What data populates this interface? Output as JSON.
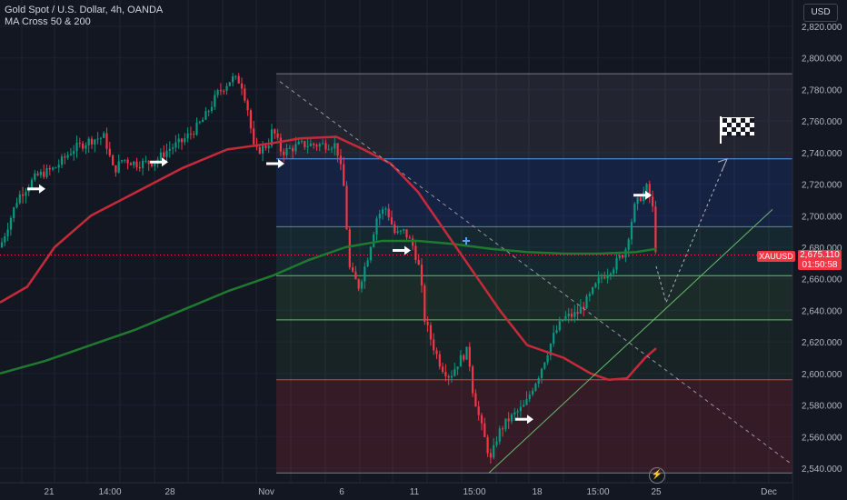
{
  "legend": {
    "symbol_line": "Gold Spot / U.S. Dollar, 4h, OANDA",
    "indicator_line": "MA Cross 50 & 200"
  },
  "currency_button": "USD",
  "price_badge": {
    "symbol": "XAUUSD",
    "price": "2,675.110",
    "countdown": "01:50:58"
  },
  "flash_icon": "lightning-icon",
  "colors": {
    "background": "#131722",
    "up": "#089981",
    "down": "#f23645",
    "ma_fast": "#c62a3a",
    "ma_slow": "#1e7a2e"
  },
  "chart_data": {
    "type": "candlestick",
    "y_axis": {
      "ticks": [
        "2,540.000",
        "2,560.000",
        "2,580.000",
        "2,600.000",
        "2,620.000",
        "2,640.000",
        "2,660.000",
        "2,680.000",
        "2,700.000",
        "2,720.000",
        "2,740.000",
        "2,760.000",
        "2,780.000",
        "2,800.000",
        "2,820.000"
      ],
      "ylim": [
        2533,
        2837
      ]
    },
    "x_axis": {
      "ticks": [
        "21",
        "14:00",
        "28",
        "Nov",
        "6",
        "11",
        "15:00",
        "18",
        "15:00",
        "25",
        "Dec"
      ],
      "xlim": [
        0,
        932
      ]
    },
    "price_anchors": [
      [
        0,
        2680
      ],
      [
        20,
        2712
      ],
      [
        40,
        2725
      ],
      [
        60,
        2730
      ],
      [
        80,
        2742
      ],
      [
        100,
        2748
      ],
      [
        115,
        2750
      ],
      [
        125,
        2728
      ],
      [
        135,
        2736
      ],
      [
        150,
        2733
      ],
      [
        170,
        2734
      ],
      [
        185,
        2742
      ],
      [
        200,
        2747
      ],
      [
        215,
        2755
      ],
      [
        225,
        2762
      ],
      [
        240,
        2778
      ],
      [
        255,
        2787
      ],
      [
        265,
        2785
      ],
      [
        272,
        2770
      ],
      [
        280,
        2740
      ],
      [
        295,
        2745
      ],
      [
        300,
        2755
      ],
      [
        310,
        2740
      ],
      [
        330,
        2745
      ],
      [
        350,
        2745
      ],
      [
        370,
        2745
      ],
      [
        378,
        2720
      ],
      [
        385,
        2665
      ],
      [
        395,
        2655
      ],
      [
        405,
        2675
      ],
      [
        415,
        2700
      ],
      [
        425,
        2705
      ],
      [
        435,
        2688
      ],
      [
        445,
        2690
      ],
      [
        455,
        2680
      ],
      [
        462,
        2665
      ],
      [
        467,
        2635
      ],
      [
        475,
        2620
      ],
      [
        485,
        2605
      ],
      [
        495,
        2598
      ],
      [
        505,
        2608
      ],
      [
        515,
        2615
      ],
      [
        520,
        2590
      ],
      [
        528,
        2570
      ],
      [
        535,
        2555
      ],
      [
        540,
        2545
      ],
      [
        548,
        2562
      ],
      [
        558,
        2570
      ],
      [
        568,
        2575
      ],
      [
        578,
        2580
      ],
      [
        585,
        2590
      ],
      [
        592,
        2598
      ],
      [
        600,
        2610
      ],
      [
        610,
        2625
      ],
      [
        620,
        2635
      ],
      [
        635,
        2638
      ],
      [
        648,
        2648
      ],
      [
        660,
        2660
      ],
      [
        675,
        2668
      ],
      [
        688,
        2678
      ],
      [
        698,
        2705
      ],
      [
        705,
        2712
      ],
      [
        712,
        2718
      ],
      [
        718,
        2705
      ],
      [
        722,
        2675
      ]
    ],
    "ma_fast": [
      [
        0,
        2645
      ],
      [
        30,
        2655
      ],
      [
        60,
        2680
      ],
      [
        100,
        2700
      ],
      [
        150,
        2715
      ],
      [
        200,
        2730
      ],
      [
        250,
        2742
      ],
      [
        300,
        2746
      ],
      [
        330,
        2749
      ],
      [
        370,
        2750
      ],
      [
        400,
        2742
      ],
      [
        430,
        2733
      ],
      [
        460,
        2715
      ],
      [
        490,
        2690
      ],
      [
        520,
        2665
      ],
      [
        550,
        2640
      ],
      [
        580,
        2618
      ],
      [
        600,
        2614
      ],
      [
        620,
        2610
      ],
      [
        650,
        2600
      ],
      [
        670,
        2596
      ],
      [
        690,
        2597
      ],
      [
        710,
        2610
      ],
      [
        722,
        2616
      ]
    ],
    "ma_slow": [
      [
        0,
        2600
      ],
      [
        50,
        2608
      ],
      [
        100,
        2618
      ],
      [
        150,
        2628
      ],
      [
        200,
        2640
      ],
      [
        250,
        2652
      ],
      [
        300,
        2662
      ],
      [
        340,
        2672
      ],
      [
        380,
        2680
      ],
      [
        420,
        2684
      ],
      [
        460,
        2684
      ],
      [
        500,
        2682
      ],
      [
        540,
        2679
      ],
      [
        580,
        2677
      ],
      [
        620,
        2676
      ],
      [
        660,
        2676
      ],
      [
        700,
        2677
      ],
      [
        722,
        2679
      ]
    ],
    "zones": [
      {
        "top": 2790,
        "bottom": 2736,
        "color": "rgba(120,123,134,0.15)"
      },
      {
        "top": 2736,
        "bottom": 2693,
        "color": "rgba(41,98,255,0.15)"
      },
      {
        "top": 2693,
        "bottom": 2662,
        "color": "rgba(38,166,154,0.12)"
      },
      {
        "top": 2662,
        "bottom": 2634,
        "color": "rgba(76,175,80,0.14)"
      },
      {
        "top": 2634,
        "bottom": 2596,
        "color": "rgba(76,175,80,0.08)"
      },
      {
        "top": 2596,
        "bottom": 2537,
        "color": "rgba(242,54,69,0.15)"
      }
    ],
    "zone_lines": [
      {
        "y": 2790,
        "color": "#787b86"
      },
      {
        "y": 2736,
        "color": "#5b9cf6"
      },
      {
        "y": 2693,
        "color": "#26a69a"
      },
      {
        "y": 2662,
        "color": "#66bb6a"
      },
      {
        "y": 2634,
        "color": "#66bb6a"
      },
      {
        "y": 2596,
        "color": "#f23645"
      },
      {
        "y": 2537,
        "color": "#787b86"
      }
    ],
    "current_price": 2675.11
  }
}
